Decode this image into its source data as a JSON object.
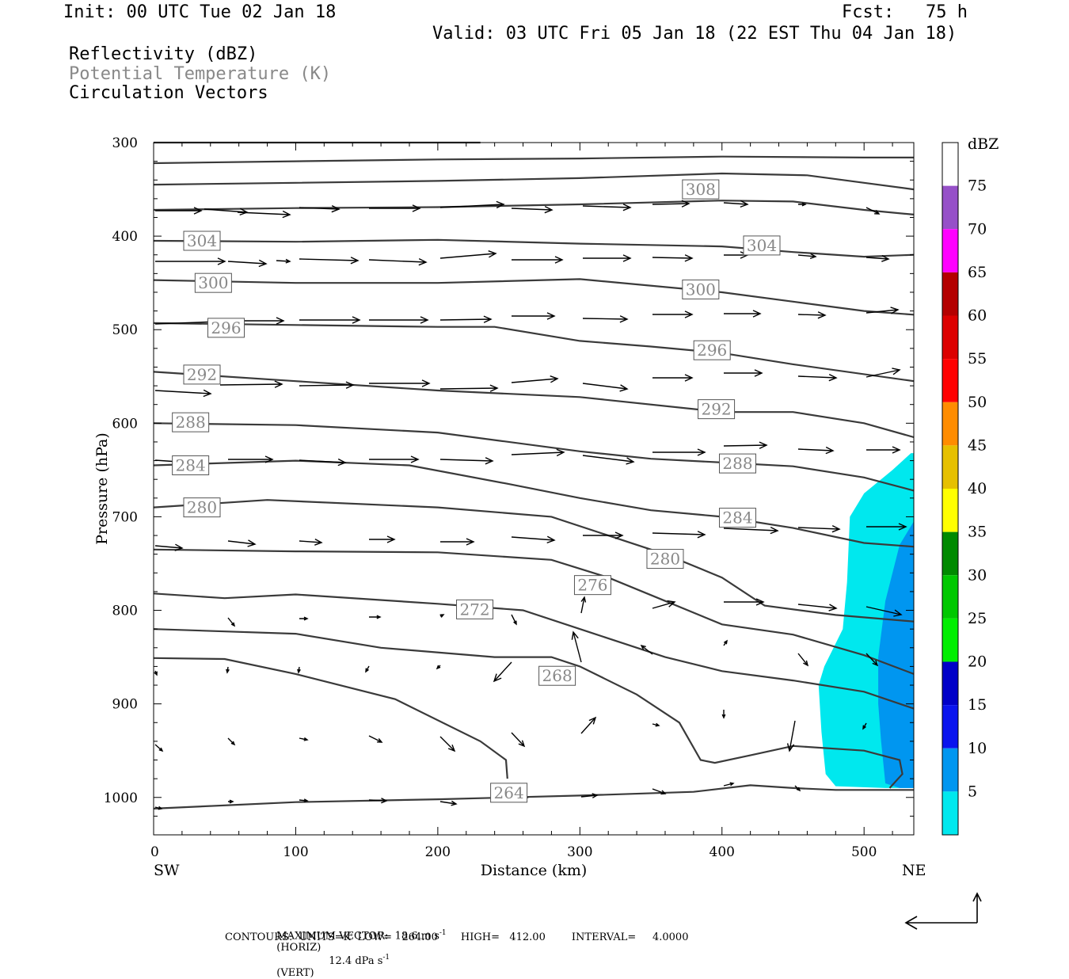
{
  "header": {
    "init": "Init: 00 UTC Tue 02 Jan 18",
    "fcst": "Fcst:   75 h",
    "valid": "Valid: 03 UTC Fri 05 Jan 18 (22 EST Thu 04 Jan 18)",
    "fields": [
      "Reflectivity (dBZ)",
      "Potential Temperature (K)",
      "Circulation Vectors"
    ]
  },
  "colors": {
    "contour": "#3a3a3a",
    "potential_temperature_label": "#888888",
    "dbz_5": "#00e8ee",
    "dbz_10": "#0096f0"
  },
  "chart_data": {
    "type": "cross-section",
    "xlabel": "Distance (km)",
    "ylabel": "Pressure (hPa)",
    "xlim": [
      0,
      535
    ],
    "ylim": [
      1040,
      300
    ],
    "x_ticks": [
      0,
      100,
      200,
      300,
      400,
      500
    ],
    "y_ticks": [
      300,
      400,
      500,
      600,
      700,
      800,
      900,
      1000
    ],
    "x_end_labels": {
      "left": "SW",
      "right": "NE"
    },
    "colorbar": {
      "title": "dBZ",
      "levels": [
        5,
        10,
        15,
        20,
        25,
        30,
        35,
        40,
        45,
        50,
        55,
        60,
        65,
        70,
        75
      ],
      "colors": [
        "#00e8ee",
        "#0096f0",
        "#0a14ee",
        "#0000c8",
        "#00ee00",
        "#00c800",
        "#008a00",
        "#ffff00",
        "#e6c000",
        "#ff8c00",
        "#ff0000",
        "#dc0000",
        "#b40000",
        "#ff00ff",
        "#9650c8"
      ]
    },
    "contour_labels": [
      {
        "value": "308",
        "x": 385,
        "p": 350
      },
      {
        "value": "304",
        "x": 34,
        "p": 405
      },
      {
        "value": "304",
        "x": 428,
        "p": 410
      },
      {
        "value": "300",
        "x": 42,
        "p": 450
      },
      {
        "value": "300",
        "x": 385,
        "p": 457
      },
      {
        "value": "296",
        "x": 51,
        "p": 498
      },
      {
        "value": "296",
        "x": 393,
        "p": 522
      },
      {
        "value": "292",
        "x": 34,
        "p": 548
      },
      {
        "value": "292",
        "x": 396,
        "p": 585
      },
      {
        "value": "288",
        "x": 26,
        "p": 599
      },
      {
        "value": "288",
        "x": 411,
        "p": 643
      },
      {
        "value": "284",
        "x": 26,
        "p": 645
      },
      {
        "value": "284",
        "x": 411,
        "p": 701
      },
      {
        "value": "280",
        "x": 34,
        "p": 690
      },
      {
        "value": "280",
        "x": 360,
        "p": 745
      },
      {
        "value": "276",
        "x": 309,
        "p": 773
      },
      {
        "value": "272",
        "x": 226,
        "p": 799
      },
      {
        "value": "268",
        "x": 284,
        "p": 870
      },
      {
        "value": "264",
        "x": 250,
        "p": 995
      }
    ],
    "reflectivity_region": {
      "dbz_5_outline": [
        [
          520,
          650
        ],
        [
          533,
          632
        ],
        [
          535,
          632
        ],
        [
          535,
          990
        ],
        [
          515,
          990
        ],
        [
          480,
          988
        ],
        [
          473,
          975
        ],
        [
          470,
          930
        ],
        [
          468,
          880
        ],
        [
          472,
          860
        ],
        [
          485,
          820
        ],
        [
          488,
          770
        ],
        [
          490,
          700
        ],
        [
          500,
          675
        ]
      ],
      "dbz_10_outline": [
        [
          535,
          705
        ],
        [
          525,
          730
        ],
        [
          515,
          790
        ],
        [
          510,
          850
        ],
        [
          510,
          900
        ],
        [
          512,
          940
        ],
        [
          515,
          985
        ],
        [
          525,
          990
        ],
        [
          535,
          990
        ]
      ]
    },
    "footer": {
      "max_vector": "MAXIMUM VECTOR:  18.6 m s",
      "max_vector_horiz": "(HORIZ)",
      "max_vector_vert": "12.4 dPa s",
      "max_vector_vert_tag": "(VERT)",
      "superscript": "-1",
      "contours": "CONTOURS:  UNITS=K  LOW=   264.00       HIGH=   412.00        INTERVAL=     4.0000"
    }
  }
}
